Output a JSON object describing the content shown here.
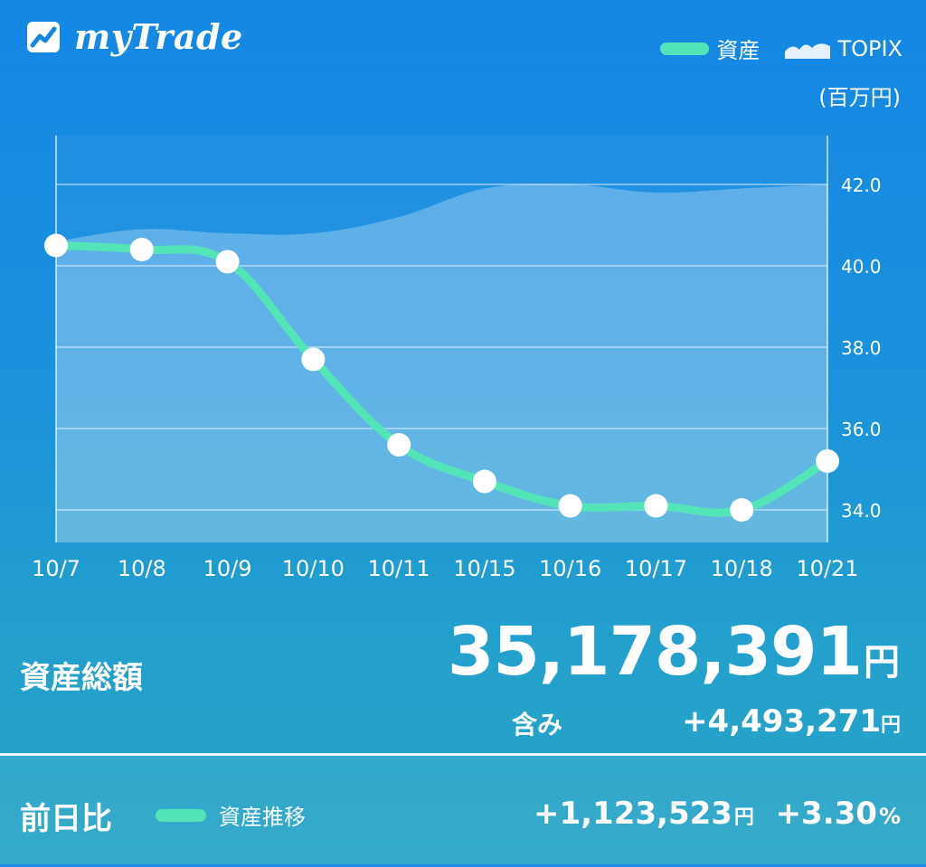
{
  "app": {
    "title": "myTrade"
  },
  "legend": {
    "asset_label": "資産",
    "topix_label": "TOPIX",
    "unit": "(百万円)"
  },
  "colors": {
    "asset_line": "#53e5b8",
    "topix_area": "#ffffff"
  },
  "chart_data": {
    "type": "line",
    "categories": [
      "10/7",
      "10/8",
      "10/9",
      "10/10",
      "10/11",
      "10/15",
      "10/16",
      "10/17",
      "10/18",
      "10/21"
    ],
    "series": [
      {
        "name": "資産",
        "values": [
          40.5,
          40.4,
          40.1,
          37.7,
          35.6,
          34.7,
          34.1,
          34.1,
          34.0,
          35.2
        ]
      },
      {
        "name": "TOPIX",
        "values": [
          40.6,
          40.9,
          40.8,
          40.8,
          41.2,
          41.9,
          42.0,
          41.8,
          41.9,
          42.0
        ]
      }
    ],
    "ylim": [
      33.2,
      43.2
    ],
    "yticks": [
      "34.0",
      "36.0",
      "38.0",
      "40.0",
      "42.0"
    ],
    "grid": true
  },
  "summary": {
    "label": "資産総額",
    "total": "35,178,391",
    "yen": "円",
    "fukumi_label": "含み",
    "fukumi_value": "+4,493,271",
    "fukumi_yen": "円"
  },
  "footer": {
    "label": "前日比",
    "trend_label": "資産推移",
    "diff": "+1,123,523",
    "diff_yen": "円",
    "pct": "+3.30",
    "pct_symbol": "%"
  }
}
